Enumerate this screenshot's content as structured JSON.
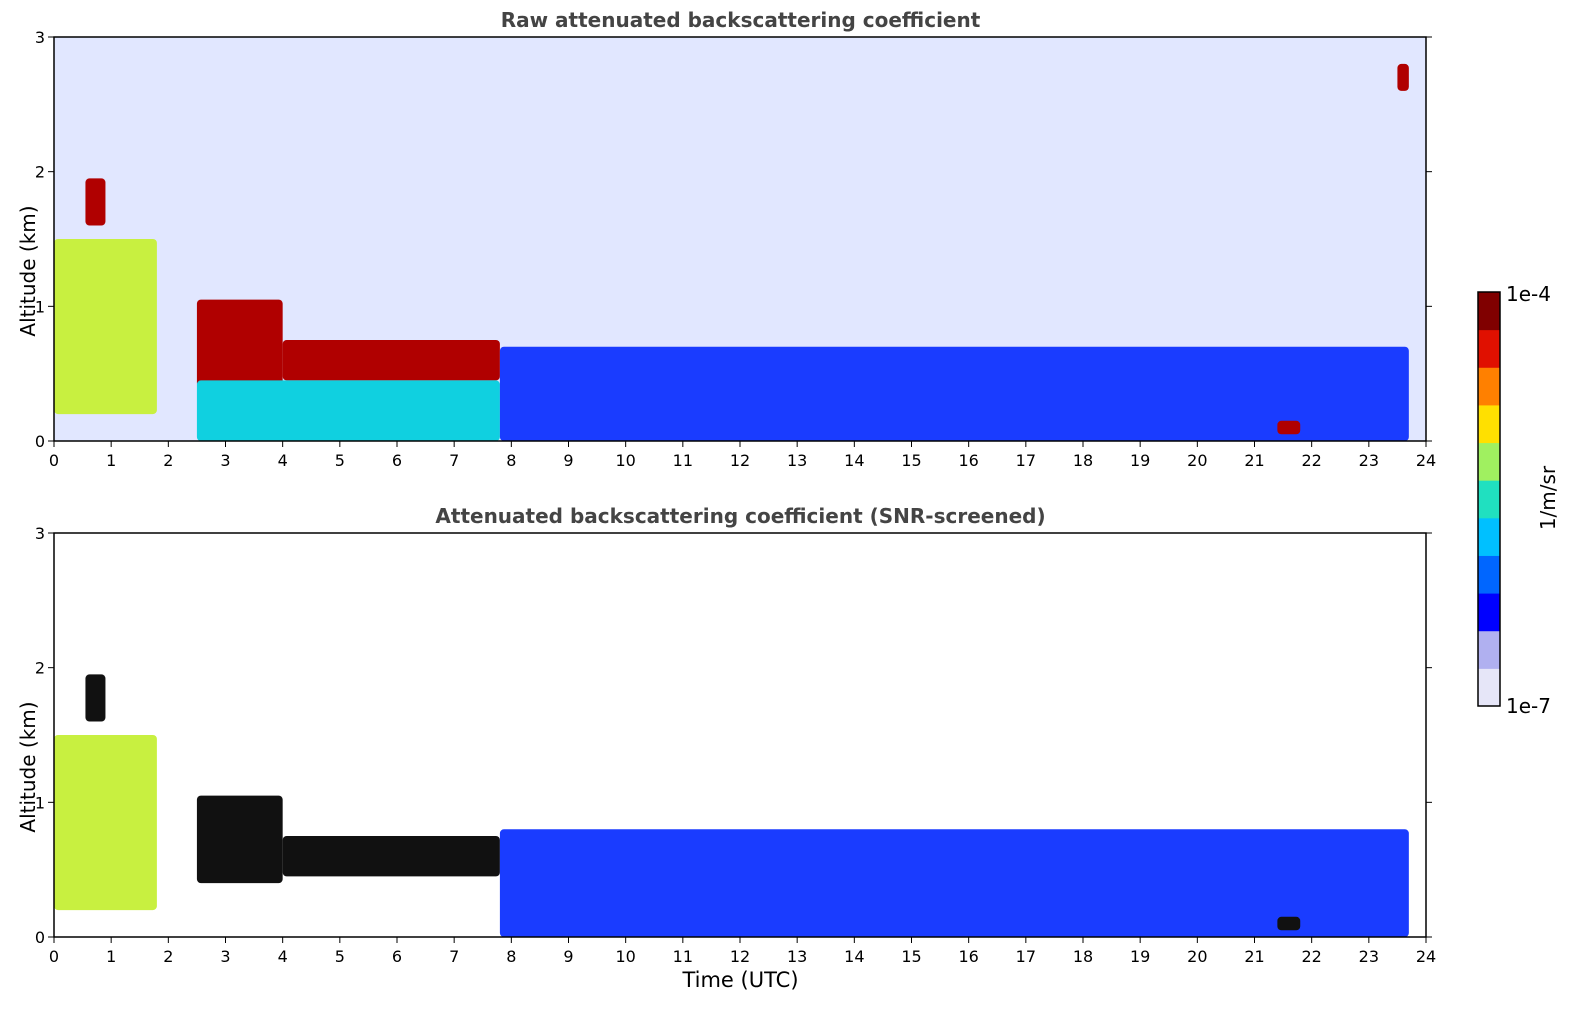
{
  "chart_data": [
    {
      "type": "heatmap",
      "title": "Raw attenuated backscattering coefficient",
      "xlabel": "",
      "ylabel": "Altitude (km)",
      "xlim": [
        0,
        24
      ],
      "ylim": [
        0,
        3
      ],
      "xticks": [
        "0",
        "1",
        "2",
        "3",
        "4",
        "5",
        "6",
        "7",
        "8",
        "9",
        "10",
        "11",
        "12",
        "13",
        "14",
        "15",
        "16",
        "17",
        "18",
        "19",
        "20",
        "21",
        "22",
        "23",
        "24"
      ],
      "yticks": [
        "0",
        "1",
        "2",
        "3"
      ],
      "layers": [
        {
          "t0": 0,
          "t1": 1.8,
          "h0": 0.2,
          "h1": 1.5,
          "level": "high"
        },
        {
          "t0": 0.55,
          "t1": 0.9,
          "h0": 1.6,
          "h1": 1.95,
          "level": "very-high"
        },
        {
          "t0": 2.5,
          "t1": 4.0,
          "h0": 0.4,
          "h1": 1.05,
          "level": "very-high"
        },
        {
          "t0": 4.0,
          "t1": 7.8,
          "h0": 0.45,
          "h1": 0.75,
          "level": "very-high"
        },
        {
          "t0": 2.5,
          "t1": 7.8,
          "h0": 0.0,
          "h1": 0.45,
          "level": "medium"
        },
        {
          "t0": 7.8,
          "t1": 23.7,
          "h0": 0.0,
          "h1": 0.7,
          "level": "low"
        },
        {
          "t0": 21.4,
          "t1": 21.8,
          "h0": 0.05,
          "h1": 0.15,
          "level": "very-high"
        },
        {
          "t0": 23.5,
          "t1": 23.7,
          "h0": 2.6,
          "h1": 2.8,
          "level": "very-high"
        }
      ]
    },
    {
      "type": "heatmap",
      "title": "Attenuated backscattering coefficient (SNR-screened)",
      "xlabel": "Time (UTC)",
      "ylabel": "Altitude (km)",
      "xlim": [
        0,
        24
      ],
      "ylim": [
        0,
        3
      ],
      "xticks": [
        "0",
        "1",
        "2",
        "3",
        "4",
        "5",
        "6",
        "7",
        "8",
        "9",
        "10",
        "11",
        "12",
        "13",
        "14",
        "15",
        "16",
        "17",
        "18",
        "19",
        "20",
        "21",
        "22",
        "23",
        "24"
      ],
      "yticks": [
        "0",
        "1",
        "2",
        "3"
      ],
      "layers": [
        {
          "t0": 0,
          "t1": 1.8,
          "h0": 0.2,
          "h1": 1.5,
          "level": "high"
        },
        {
          "t0": 0.55,
          "t1": 0.9,
          "h0": 1.6,
          "h1": 1.95,
          "level": "saturated"
        },
        {
          "t0": 2.5,
          "t1": 4.0,
          "h0": 0.4,
          "h1": 1.05,
          "level": "saturated"
        },
        {
          "t0": 4.0,
          "t1": 7.8,
          "h0": 0.45,
          "h1": 0.75,
          "level": "saturated"
        },
        {
          "t0": 7.8,
          "t1": 23.7,
          "h0": 0.0,
          "h1": 0.8,
          "level": "low"
        },
        {
          "t0": 21.4,
          "t1": 21.8,
          "h0": 0.05,
          "h1": 0.15,
          "level": "saturated"
        }
      ]
    }
  ],
  "colorbar": {
    "max_label": "1e-4",
    "min_label": "1e-7",
    "unit": "1/m/sr",
    "colors": [
      "#e6e6f8",
      "#b0b0f0",
      "#0000ff",
      "#0066ff",
      "#00c0ff",
      "#20e0c0",
      "#a0f060",
      "#ffe000",
      "#ff8000",
      "#e01000",
      "#800000"
    ]
  }
}
